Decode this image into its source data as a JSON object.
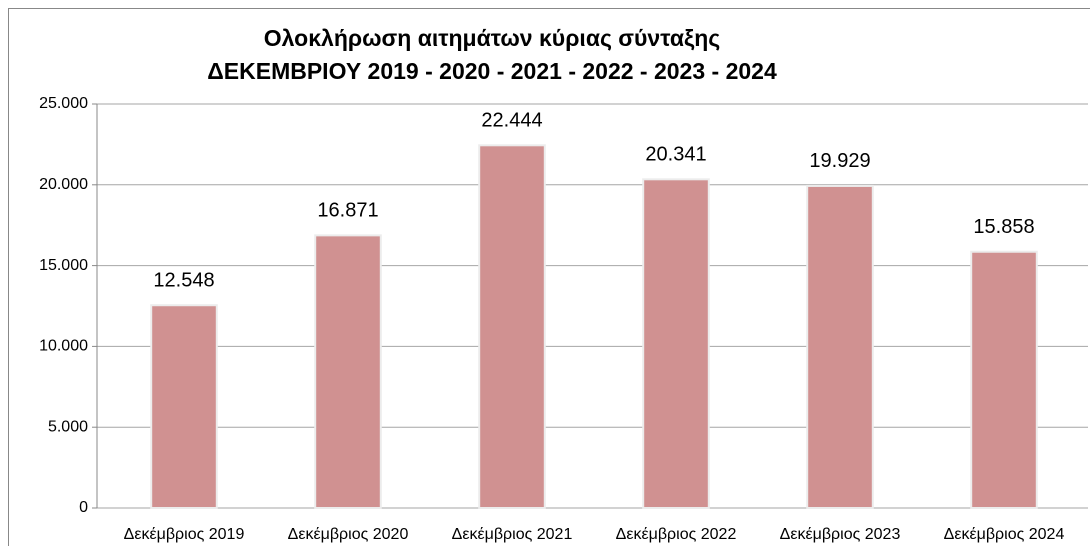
{
  "chart_data": {
    "type": "bar",
    "title": "Ολοκλήρωση αιτημάτων κύριας σύνταξης",
    "subtitle": "ΔΕΚΕΜΒΡΙΟΥ 2019 - 2020 - 2021 - 2022 - 2023 - 2024",
    "categories": [
      "Δεκέμβριος 2019",
      "Δεκέμβριος 2020",
      "Δεκέμβριος 2021",
      "Δεκέμβριος 2022",
      "Δεκέμβριος 2023",
      "Δεκέμβριος 2024"
    ],
    "values": [
      12548,
      16871,
      22444,
      20341,
      19929,
      15858
    ],
    "value_labels": [
      "12.548",
      "16.871",
      "22.444",
      "20.341",
      "19.929",
      "15.858"
    ],
    "color": "#d09191",
    "ylim": [
      0,
      25000
    ],
    "yticks": [
      0,
      {
        "value": 5000,
        "label": "5.000"
      },
      {
        "value": 10000,
        "label": "10.000"
      },
      {
        "value": 15000,
        "label": "15.000"
      },
      {
        "value": 20000,
        "label": "20.000"
      },
      {
        "value": 25000,
        "label": "25.000"
      }
    ],
    "grid": true
  }
}
